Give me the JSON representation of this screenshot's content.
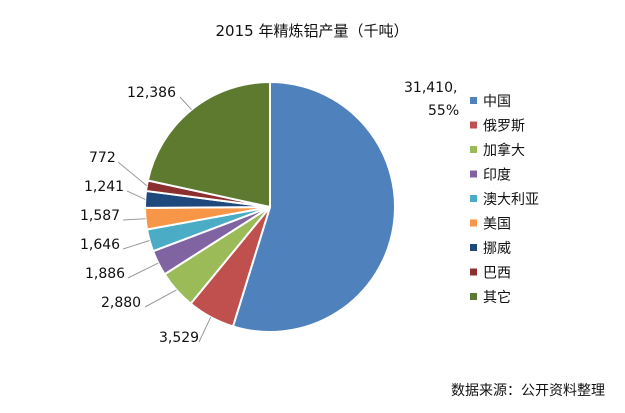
{
  "chart_data": {
    "type": "pie",
    "title": "2015 年精炼铝产量（千吨）",
    "slices": [
      {
        "label": "中国",
        "value": 31410,
        "value_text": "31,410,",
        "percent_text": "55%",
        "color": "#4F81BD"
      },
      {
        "label": "俄罗斯",
        "value": 3529,
        "value_text": "3,529",
        "color": "#C0504D"
      },
      {
        "label": "加拿大",
        "value": 2880,
        "value_text": "2,880",
        "color": "#9BBB59"
      },
      {
        "label": "印度",
        "value": 1886,
        "value_text": "1,886",
        "color": "#8064A2"
      },
      {
        "label": "澳大利亚",
        "value": 1646,
        "value_text": "1,646",
        "color": "#4BACC6"
      },
      {
        "label": "美国",
        "value": 1587,
        "value_text": "1,587",
        "color": "#F79646"
      },
      {
        "label": "挪威",
        "value": 1241,
        "value_text": "1,241",
        "color": "#1F497D"
      },
      {
        "label": "巴西",
        "value": 772,
        "value_text": "772",
        "color": "#8B2F2F"
      },
      {
        "label": "其它",
        "value": 12386,
        "value_text": "12,386",
        "color": "#5E7A2F"
      }
    ],
    "legend_placement": "right",
    "source": "数据来源：公开资料整理"
  }
}
